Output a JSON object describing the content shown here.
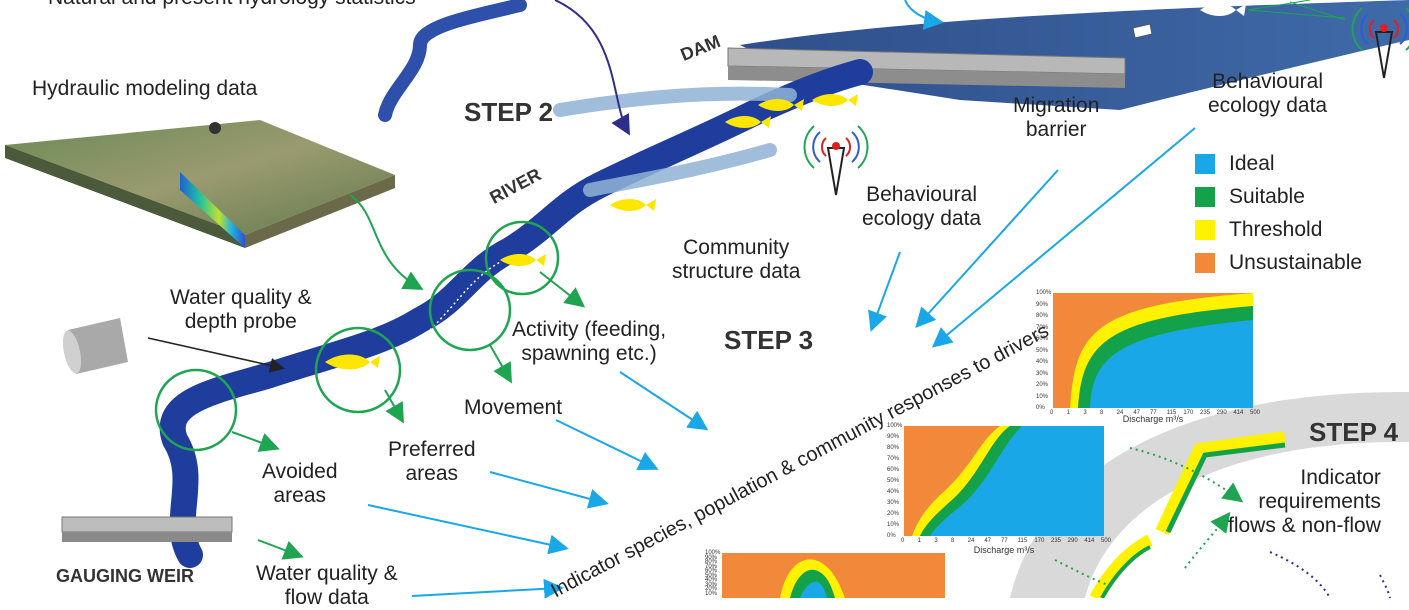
{
  "labels": {
    "natural_stats": "Natural and present hydrology statistics",
    "hydraulic": "Hydraulic modeling data",
    "step2": "STEP 2",
    "step3": "STEP 3",
    "step4": "STEP 4",
    "dam": "DAM",
    "river": "RIVER",
    "gauging_weir": "GAUGING WEIR",
    "migration_barrier": "Migration\nbarrier",
    "behavioural_1": "Behavioural\necology data",
    "behavioural_2": "Behavioural\necology data",
    "community": "Community\nstructure data",
    "water_quality_probe": "Water quality &\ndepth probe",
    "activity": "Activity (feeding,\nspawning etc.)",
    "movement": "Movement",
    "preferred": "Preferred\nareas",
    "avoided": "Avoided\nareas",
    "water_quality_flow": "Water quality &\nflow data",
    "indicator_curve": "Indicator species, population & community responses to drivers",
    "indicator_req": "Indicator\nrequirements\nflows & non-flow"
  },
  "legend": [
    {
      "label": "Ideal",
      "color": "#1aa7e8"
    },
    {
      "label": "Suitable",
      "color": "#13a24a"
    },
    {
      "label": "Threshold",
      "color": "#fff200"
    },
    {
      "label": "Unsustainable",
      "color": "#f2883a"
    }
  ],
  "chart_axis": {
    "xlabel": "Discharge m³/s",
    "xticks": [
      "0",
      "1",
      "3",
      "8",
      "24",
      "47",
      "77",
      "115",
      "170",
      "235",
      "290",
      "414",
      "500"
    ],
    "yticks": [
      "0%",
      "10%",
      "20%",
      "30%",
      "40%",
      "50%",
      "60%",
      "70%",
      "80%",
      "90%",
      "100%"
    ]
  },
  "colors": {
    "river_dark": "#1f3d9c",
    "river_light": "#8fb3d6",
    "arrow_blue": "#1aa7e8",
    "arrow_green": "#1fa451",
    "arrow_navy": "#2d2d8a",
    "fish": "#ffe600",
    "circle": "#1fa451",
    "band_grey": "#d9d9d9"
  },
  "icons": [
    "radio-tower-icon",
    "fish-icon",
    "probe-icon",
    "weir-icon",
    "dam-icon",
    "terrain-block-icon"
  ]
}
